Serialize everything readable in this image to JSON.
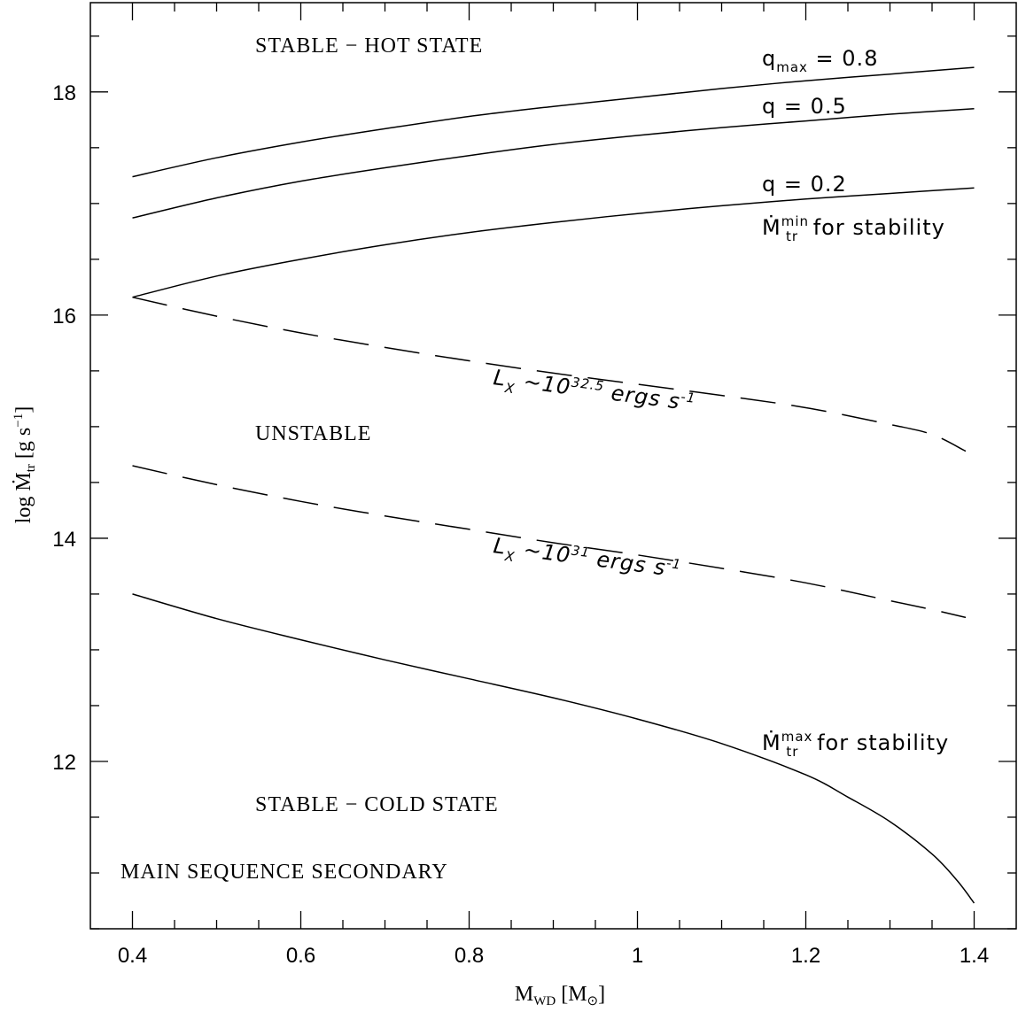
{
  "chart_data": {
    "type": "line",
    "xlabel": "M",
    "xlabel_sub": "WD",
    "xlabel_units": "[M",
    "xlabel_units_sub": "⊙",
    "xlabel_units_close": "]",
    "ylabel": "log",
    "ylabel_symbol": "Ṁ",
    "ylabel_sub": "tr",
    "ylabel_units": "[g s",
    "ylabel_units_sup": "−1",
    "ylabel_units_close": "]",
    "xlim": [
      0.35,
      1.45
    ],
    "ylim": [
      10.5,
      18.8
    ],
    "x_ticks": [
      0.4,
      0.6,
      0.8,
      1,
      1.2,
      1.4
    ],
    "x_tick_labels": [
      "0.4",
      "0.6",
      "0.8",
      "1",
      "1.2",
      "1.4"
    ],
    "y_ticks": [
      12,
      14,
      16,
      18
    ],
    "y_tick_labels": [
      "12",
      "14",
      "16",
      "18"
    ],
    "grid": false,
    "series": [
      {
        "key": "qmax",
        "style": "solid",
        "x": [
          0.4,
          0.5,
          0.6,
          0.7,
          0.8,
          0.9,
          1.0,
          1.1,
          1.2,
          1.3,
          1.4
        ],
        "y": [
          17.24,
          17.41,
          17.55,
          17.67,
          17.78,
          17.87,
          17.95,
          18.03,
          18.1,
          18.16,
          18.22
        ]
      },
      {
        "key": "q05",
        "style": "solid",
        "x": [
          0.4,
          0.5,
          0.6,
          0.7,
          0.8,
          0.9,
          1.0,
          1.1,
          1.2,
          1.3,
          1.4
        ],
        "y": [
          16.87,
          17.05,
          17.2,
          17.32,
          17.43,
          17.53,
          17.61,
          17.68,
          17.74,
          17.8,
          17.85
        ]
      },
      {
        "key": "q02",
        "style": "solid",
        "x": [
          0.4,
          0.5,
          0.6,
          0.7,
          0.8,
          0.9,
          1.0,
          1.1,
          1.2,
          1.3,
          1.4
        ],
        "y": [
          16.16,
          16.35,
          16.5,
          16.63,
          16.74,
          16.83,
          16.91,
          16.98,
          17.04,
          17.09,
          17.14
        ]
      },
      {
        "key": "lx325",
        "style": "dashed",
        "x": [
          0.4,
          0.5,
          0.6,
          0.7,
          0.8,
          0.9,
          1.0,
          1.1,
          1.2,
          1.3,
          1.35,
          1.39
        ],
        "y": [
          16.16,
          15.99,
          15.84,
          15.71,
          15.59,
          15.48,
          15.38,
          15.28,
          15.17,
          15.02,
          14.93,
          14.78
        ]
      },
      {
        "key": "lx31",
        "style": "dashed",
        "x": [
          0.4,
          0.5,
          0.6,
          0.7,
          0.8,
          0.9,
          1.0,
          1.1,
          1.2,
          1.3,
          1.35,
          1.39
        ],
        "y": [
          14.65,
          14.48,
          14.33,
          14.2,
          14.08,
          13.96,
          13.85,
          13.73,
          13.6,
          13.44,
          13.36,
          13.29
        ]
      },
      {
        "key": "mmax",
        "style": "solid",
        "x": [
          0.4,
          0.5,
          0.6,
          0.7,
          0.8,
          0.9,
          1.0,
          1.1,
          1.2,
          1.25,
          1.3,
          1.35,
          1.38,
          1.4
        ],
        "y": [
          13.5,
          13.28,
          13.09,
          12.91,
          12.74,
          12.57,
          12.38,
          12.16,
          11.88,
          11.68,
          11.46,
          11.17,
          10.93,
          10.73
        ]
      }
    ],
    "region_labels": {
      "hot": "STABLE − HOT STATE",
      "unstable": "UNSTABLE",
      "cold": "STABLE − COLD STATE",
      "secondary": "MAIN SEQUENCE SECONDARY"
    },
    "curve_labels": {
      "qmax_q": "q",
      "qmax_sub": "max",
      "qmax_val": " = 0.8",
      "q05": "q = 0.5",
      "q02": "q = 0.2",
      "mmin_sym": "Ṁ",
      "mmin_sup": "min",
      "mmin_sub": "tr",
      "mmin_text": " for stability",
      "mmax_sym": "Ṁ",
      "mmax_sup": "max",
      "mmax_sub": "tr",
      "mmax_text": " for stability",
      "lx325_L": "L",
      "lx325_sub": "X",
      "lx325_mid": " ~10",
      "lx325_exp": "32.5",
      "lx325_units": " ergs s",
      "lx325_units_sup": "-1",
      "lx31_L": "L",
      "lx31_sub": "X",
      "lx31_mid": " ~10",
      "lx31_exp": "31",
      "lx31_units": " ergs s",
      "lx31_units_sup": "-1"
    }
  }
}
